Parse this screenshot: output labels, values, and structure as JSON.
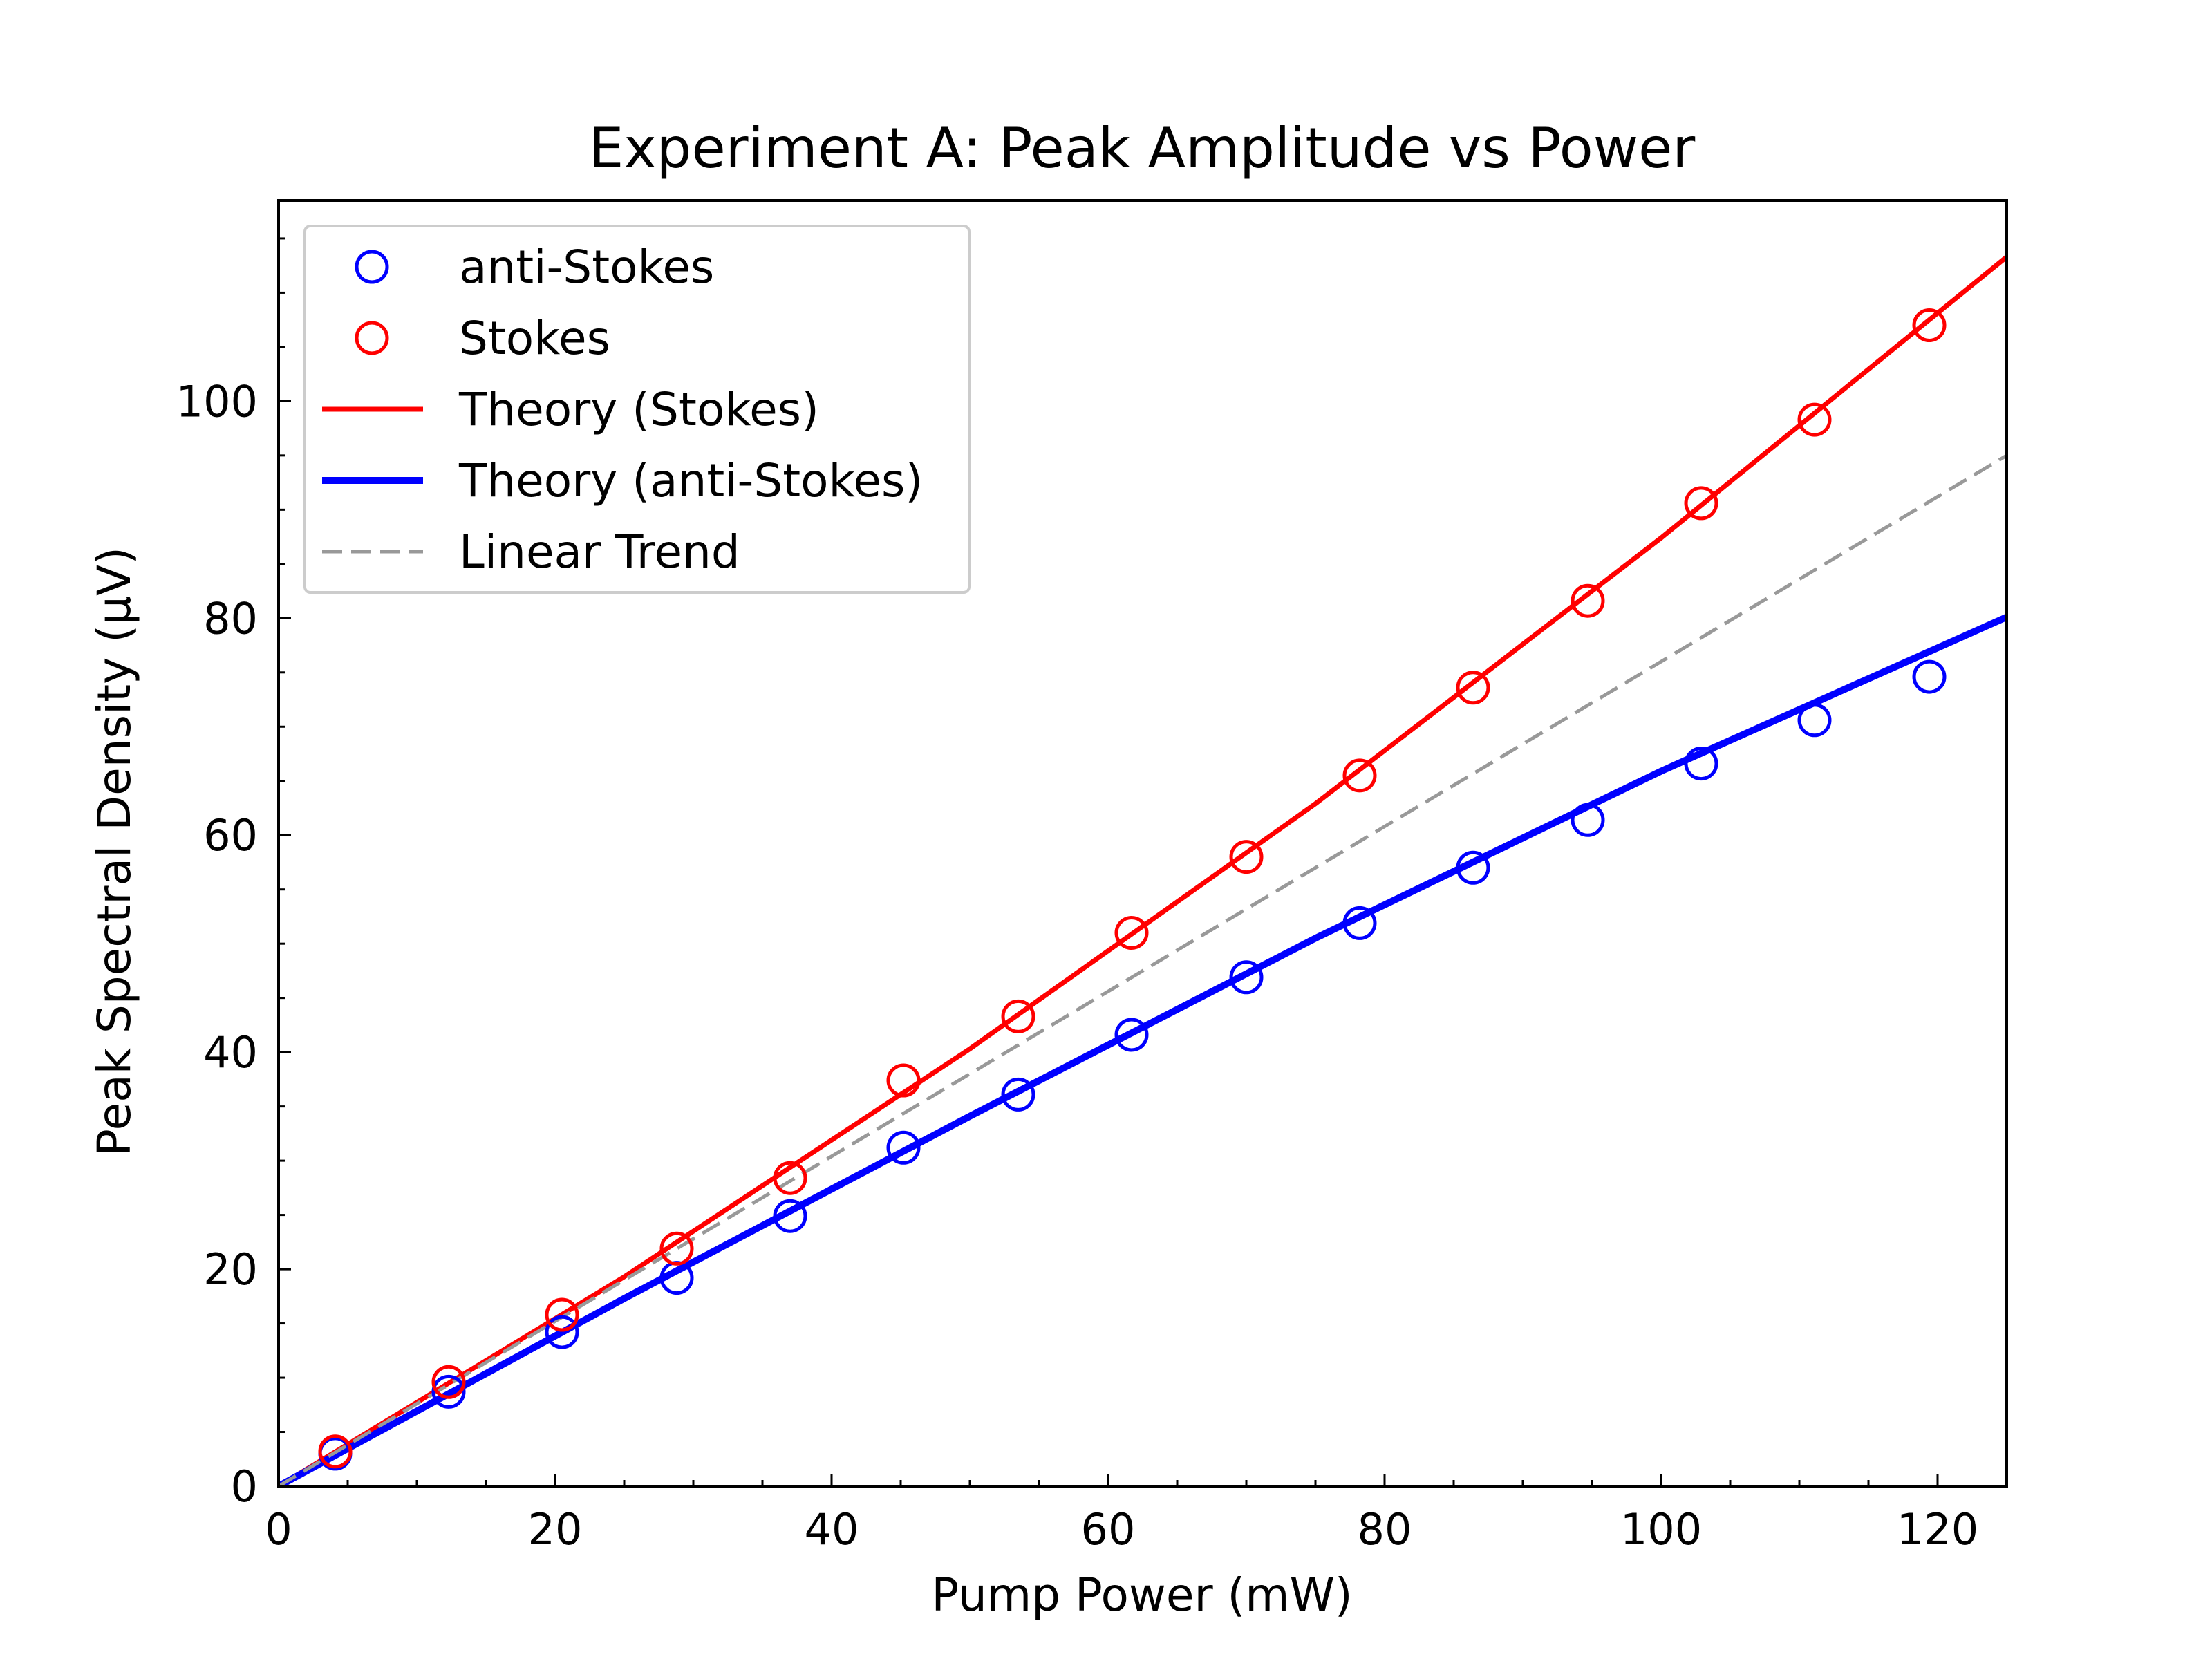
{
  "chart_data": {
    "type": "scatter",
    "title": "Experiment A: Peak Amplitude vs Power",
    "xlabel": "Pump Power (mW)",
    "ylabel": "Peak Spectral Density (μV)",
    "xlim": [
      0,
      125
    ],
    "ylim": [
      0,
      118.5
    ],
    "x_ticks": [
      0,
      20,
      40,
      60,
      80,
      100,
      120
    ],
    "x_minor_step": 5,
    "y_ticks": [
      0,
      20,
      40,
      60,
      80,
      100
    ],
    "y_minor_step": 5,
    "grid": false,
    "legend_position": "upper-left",
    "series": [
      {
        "name": "anti-Stokes",
        "kind": "scatter",
        "marker": "open-circle",
        "color": "#0000ff",
        "x": [
          4.1,
          12.3,
          20.5,
          28.8,
          37.0,
          45.2,
          53.5,
          61.7,
          70.0,
          78.2,
          86.4,
          94.7,
          102.9,
          111.1,
          119.4
        ],
        "y": [
          3.0,
          8.7,
          14.2,
          19.2,
          24.9,
          31.2,
          36.1,
          41.6,
          46.9,
          51.9,
          57.0,
          61.4,
          66.6,
          70.6,
          74.6
        ]
      },
      {
        "name": "Stokes",
        "kind": "scatter",
        "marker": "open-circle",
        "color": "#ff0000",
        "x": [
          4.1,
          12.3,
          20.5,
          28.8,
          37.0,
          45.2,
          53.5,
          61.7,
          70.0,
          78.2,
          86.4,
          94.7,
          102.9,
          111.1,
          119.4
        ],
        "y": [
          3.2,
          9.6,
          15.8,
          21.9,
          28.4,
          37.4,
          43.3,
          51.0,
          58.0,
          65.5,
          73.6,
          81.6,
          90.6,
          98.3,
          107.0
        ]
      },
      {
        "name": "Theory (Stokes)",
        "kind": "line",
        "color": "#ff0000",
        "x": [
          0,
          25,
          50,
          75,
          100,
          125
        ],
        "y": [
          0,
          19.3,
          40.3,
          62.9,
          87.4,
          113.3
        ]
      },
      {
        "name": "Theory (anti-Stokes)",
        "kind": "line",
        "color": "#0000ff",
        "x": [
          0,
          25,
          50,
          75,
          100,
          125
        ],
        "y": [
          0,
          17.3,
          34.1,
          50.5,
          65.9,
          80.1
        ]
      },
      {
        "name": "Linear Trend",
        "kind": "line",
        "dash": true,
        "color": "#999999",
        "x": [
          0,
          125
        ],
        "y": [
          0,
          95.0
        ]
      }
    ]
  }
}
